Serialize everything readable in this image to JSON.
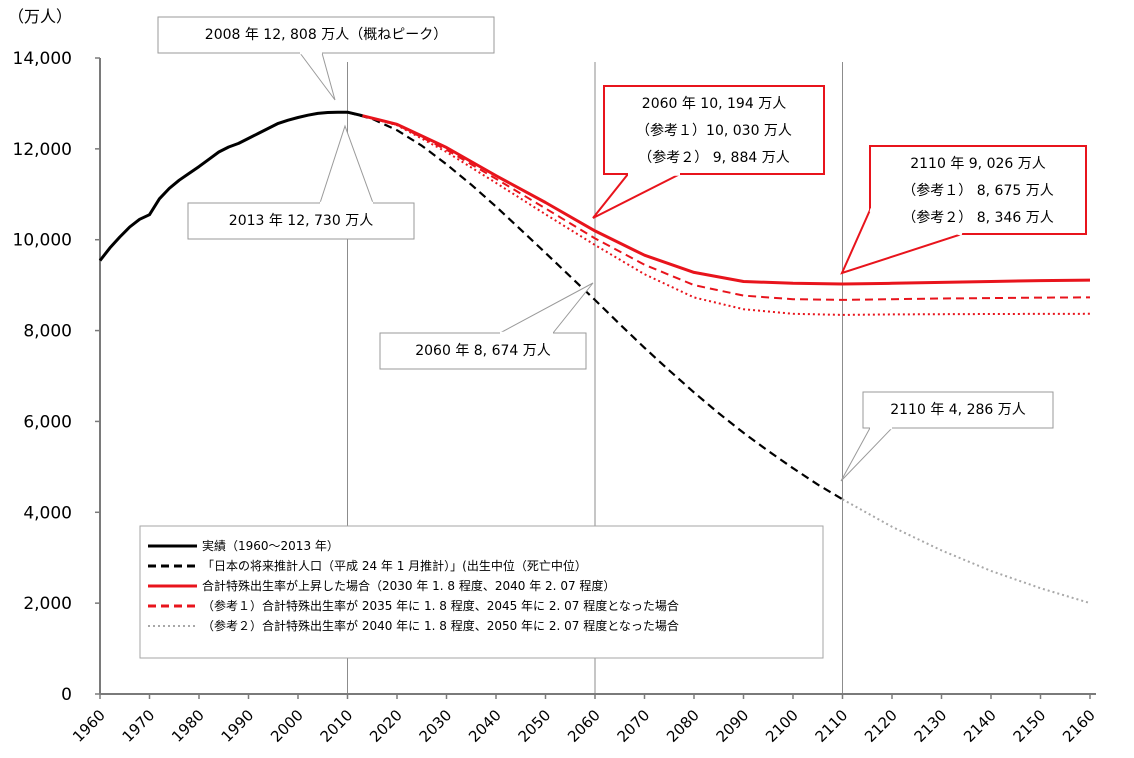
{
  "chart_data": {
    "type": "line",
    "unit_label": "（万人）",
    "ylim": [
      0,
      14000
    ],
    "xlim": [
      1960,
      2160
    ],
    "y_ticks": [
      "0",
      "2,000",
      "4,000",
      "6,000",
      "8,000",
      "10,000",
      "12,000",
      "14,000"
    ],
    "y_tick_values": [
      0,
      2000,
      4000,
      6000,
      8000,
      10000,
      12000,
      14000
    ],
    "x_ticks": [
      "1960",
      "1970",
      "1980",
      "1990",
      "2000",
      "2010",
      "2020",
      "2030",
      "2040",
      "2050",
      "2060",
      "2070",
      "2080",
      "2090",
      "2100",
      "2110",
      "2120",
      "2130",
      "2140",
      "2150",
      "2160"
    ],
    "x_tick_values": [
      1960,
      1970,
      1980,
      1990,
      2000,
      2010,
      2020,
      2030,
      2040,
      2050,
      2060,
      2070,
      2080,
      2090,
      2100,
      2110,
      2120,
      2130,
      2140,
      2150,
      2160
    ],
    "reference_lines_x": [
      2010,
      2060,
      2110
    ],
    "grid": false,
    "legend_position": "bottom-left",
    "colors": {
      "actual": "#000000",
      "projection": "#000000",
      "raised": "#e8141c",
      "ref1": "#e8141c",
      "ref2": "#e8141c",
      "legend_ref2": "#a8a8a8",
      "long_term": "#a8a8a8",
      "callout_border": "#e8141c",
      "note_border": "#9a9a9a"
    },
    "series": [
      {
        "key": "actual",
        "style": "solid",
        "x": [
          1960,
          1962,
          1964,
          1966,
          1968,
          1970,
          1972,
          1974,
          1976,
          1978,
          1980,
          1982,
          1984,
          1986,
          1988,
          1990,
          1992,
          1994,
          1996,
          1998,
          2000,
          2002,
          2004,
          2006,
          2008,
          2010,
          2013
        ],
        "y": [
          9540,
          9820,
          10060,
          10280,
          10450,
          10550,
          10900,
          11130,
          11310,
          11460,
          11610,
          11770,
          11930,
          12040,
          12120,
          12230,
          12340,
          12450,
          12560,
          12630,
          12690,
          12740,
          12780,
          12800,
          12808,
          12806,
          12730
        ]
      },
      {
        "key": "projection",
        "style": "dashed",
        "x": [
          2010,
          2015,
          2020,
          2025,
          2030,
          2035,
          2040,
          2045,
          2050,
          2055,
          2060,
          2065,
          2070,
          2075,
          2080,
          2085,
          2090,
          2095,
          2100,
          2105,
          2110
        ],
        "y": [
          12806,
          12660,
          12410,
          12070,
          11660,
          11210,
          10730,
          10220,
          9710,
          9190,
          8674,
          8140,
          7620,
          7120,
          6640,
          6180,
          5750,
          5350,
          4970,
          4610,
          4286
        ]
      },
      {
        "key": "long_term",
        "style": "dotted",
        "x": [
          2110,
          2120,
          2130,
          2140,
          2150,
          2160
        ],
        "y": [
          4286,
          3680,
          3160,
          2710,
          2330,
          2000
        ]
      },
      {
        "key": "raised",
        "style": "solid",
        "x": [
          2013,
          2020,
          2030,
          2040,
          2050,
          2060,
          2070,
          2080,
          2090,
          2100,
          2110,
          2120,
          2130,
          2140,
          2150,
          2160
        ],
        "y": [
          12730,
          12540,
          12030,
          11410,
          10820,
          10194,
          9660,
          9280,
          9080,
          9040,
          9026,
          9040,
          9060,
          9080,
          9100,
          9110
        ]
      },
      {
        "key": "ref1",
        "style": "dashed",
        "x": [
          2013,
          2020,
          2030,
          2040,
          2050,
          2060,
          2070,
          2080,
          2090,
          2100,
          2110,
          2120,
          2130,
          2140,
          2150,
          2160
        ],
        "y": [
          12730,
          12530,
          11980,
          11340,
          10690,
          10030,
          9450,
          9000,
          8770,
          8690,
          8675,
          8690,
          8705,
          8715,
          8725,
          8730
        ]
      },
      {
        "key": "ref2",
        "style": "dotted",
        "x": [
          2013,
          2020,
          2030,
          2040,
          2050,
          2060,
          2070,
          2080,
          2090,
          2100,
          2110,
          2120,
          2130,
          2140,
          2150,
          2160
        ],
        "y": [
          12730,
          12520,
          11930,
          11250,
          10560,
          9884,
          9240,
          8730,
          8470,
          8370,
          8346,
          8355,
          8360,
          8365,
          8368,
          8370
        ]
      }
    ],
    "annotations": [
      {
        "key": "peak",
        "lines": [
          "2008 年 12, 808 万人（概ねピーク）"
        ]
      },
      {
        "key": "y2013",
        "lines": [
          "2013 年 12, 730 万人"
        ]
      },
      {
        "key": "proj2060",
        "lines": [
          "2060 年 8, 674 万人"
        ]
      },
      {
        "key": "proj2110",
        "lines": [
          "2110 年 4, 286 万人"
        ]
      },
      {
        "key": "raised2060",
        "lines": [
          "2060 年 10, 194 万人",
          "（参考１）10, 030 万人",
          "（参考２） 9, 884 万人"
        ]
      },
      {
        "key": "raised2110",
        "lines": [
          "2110 年 9, 026 万人",
          "（参考１） 8, 675 万人",
          "（参考２） 8, 346 万人"
        ]
      }
    ],
    "legend": [
      {
        "label": "実績（1960～2013 年）",
        "style": "solid",
        "color_key": "actual"
      },
      {
        "label": "「日本の将来推計人口（平成 24 年 1 月推計）」(出生中位（死亡中位）",
        "style": "dashed",
        "color_key": "projection"
      },
      {
        "label": "合計特殊出生率が上昇した場合（2030 年 1. 8 程度、2040 年 2. 07 程度）",
        "style": "solid",
        "color_key": "raised"
      },
      {
        "label": "（参考１）合計特殊出生率が 2035 年に 1. 8 程度、2045 年に 2. 07 程度となった場合",
        "style": "dashed",
        "color_key": "ref1"
      },
      {
        "label": "（参考２）合計特殊出生率が 2040 年に 1. 8 程度、2050 年に 2. 07 程度となった場合",
        "style": "dotted",
        "color_key": "legend_ref2"
      }
    ]
  }
}
